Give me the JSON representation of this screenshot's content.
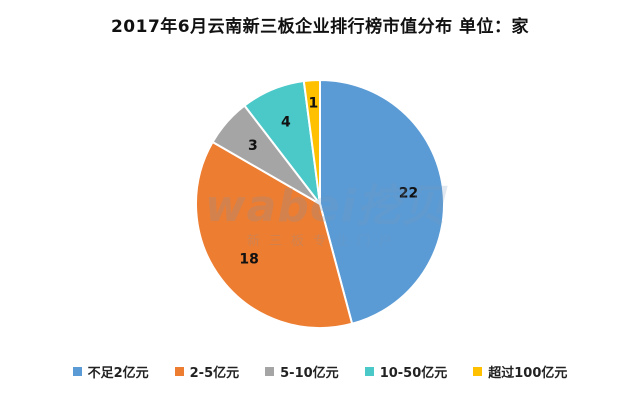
{
  "chart_data": {
    "type": "pie",
    "title": "2017年6月云南新三板企业排行榜市值分布  单位：家",
    "categories": [
      "不足2亿元",
      "2-5亿元",
      "5-10亿元",
      "10-50亿元",
      "超过100亿元"
    ],
    "values": [
      22,
      18,
      3,
      4,
      1
    ],
    "colors": [
      "#5B9BD5",
      "#ED7D31",
      "#A5A5A5",
      "#4BC8C8",
      "#FFC000"
    ],
    "legend_position": "bottom"
  },
  "watermark": {
    "logo": "wabei挖贝",
    "tagline": "新三板专业门户"
  }
}
